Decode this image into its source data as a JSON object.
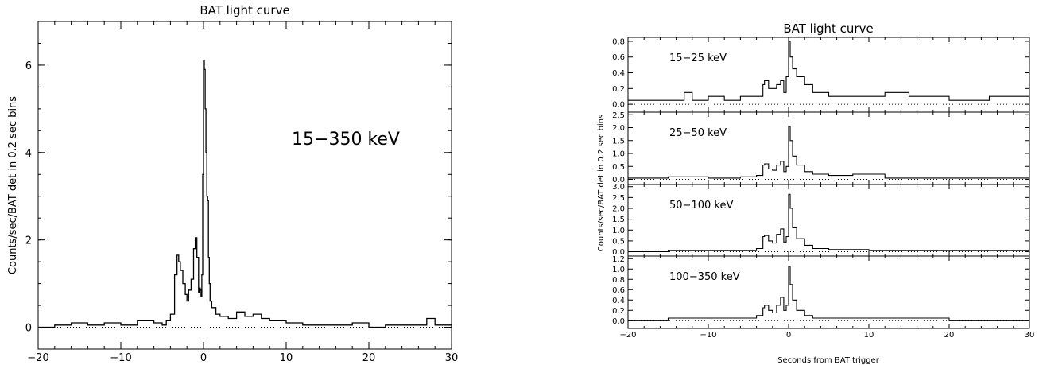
{
  "chart_data": [
    {
      "type": "line",
      "title": "BAT light curve",
      "ylabel": "Counts/sec/BAT det in 0.2 sec bins",
      "xlabel": "",
      "xlim": [
        -20,
        30
      ],
      "ylim": [
        -0.5,
        7.0
      ],
      "xticks": [
        -20,
        -10,
        0,
        10,
        20,
        30
      ],
      "xtick_labels": [
        "−20",
        "−10",
        "0",
        "10",
        "20",
        "30"
      ],
      "yticks": [
        0,
        2,
        4,
        6
      ],
      "ytick_labels": [
        "0",
        "2",
        "4",
        "6"
      ],
      "annotation": "15−350 keV",
      "baseline": 0,
      "grid": false,
      "series": [
        {
          "x": [
            -20,
            -18,
            -16,
            -14,
            -12,
            -10,
            -8,
            -6,
            -5,
            -4.5,
            -4,
            -3.5,
            -3.2,
            -3,
            -2.8,
            -2.5,
            -2.2,
            -2,
            -1.8,
            -1.5,
            -1.2,
            -1,
            -0.8,
            -0.6,
            -0.5,
            -0.4,
            -0.3,
            -0.2,
            -0.1,
            0,
            0.1,
            0.2,
            0.3,
            0.4,
            0.5,
            0.6,
            0.7,
            0.8,
            1,
            1.5,
            2,
            3,
            4,
            5,
            6,
            7,
            8,
            10,
            12,
            15,
            18,
            20,
            22,
            25,
            27,
            28,
            30
          ],
          "y": [
            0.0,
            0.05,
            0.1,
            0.05,
            0.1,
            0.05,
            0.15,
            0.1,
            0.05,
            0.15,
            0.3,
            1.2,
            1.65,
            1.5,
            1.3,
            1.0,
            0.75,
            0.6,
            0.85,
            1.1,
            1.8,
            2.05,
            1.6,
            0.8,
            0.9,
            0.85,
            0.7,
            1.2,
            3.5,
            6.1,
            5.9,
            5.0,
            4.0,
            3.0,
            2.9,
            1.6,
            1.0,
            0.6,
            0.45,
            0.3,
            0.25,
            0.2,
            0.35,
            0.25,
            0.3,
            0.2,
            0.15,
            0.1,
            0.05,
            0.05,
            0.1,
            0.0,
            0.05,
            0.05,
            0.2,
            0.05,
            0.0
          ]
        }
      ]
    },
    {
      "type": "line",
      "title": "BAT light curve",
      "xlabel": "Seconds from BAT trigger",
      "ylabel": "Counts/sec/BAT det in 0.2 sec bins",
      "xlim": [
        -20,
        30
      ],
      "xticks": [
        -20,
        -10,
        0,
        10,
        20,
        30
      ],
      "xtick_labels": [
        "−20",
        "−10",
        "0",
        "10",
        "20",
        "30"
      ],
      "grid": false,
      "panels": [
        {
          "annotation": "15−25 keV",
          "ylim": [
            -0.1,
            0.85
          ],
          "yticks": [
            0.0,
            0.2,
            0.4,
            0.6,
            0.8
          ],
          "ytick_labels": [
            "0.0",
            "0.2",
            "0.4",
            "0.6",
            "0.8"
          ],
          "x": [
            -20,
            -16,
            -13,
            -12,
            -10,
            -8,
            -6,
            -4,
            -3.2,
            -3,
            -2.5,
            -2,
            -1.5,
            -1,
            -0.6,
            -0.3,
            0,
            0.2,
            0.5,
            1,
            2,
            3,
            5,
            8,
            12,
            15,
            20,
            25,
            30
          ],
          "y": [
            0.05,
            0.05,
            0.15,
            0.05,
            0.1,
            0.05,
            0.1,
            0.1,
            0.25,
            0.3,
            0.2,
            0.2,
            0.25,
            0.3,
            0.15,
            0.35,
            0.8,
            0.6,
            0.45,
            0.35,
            0.25,
            0.15,
            0.1,
            0.1,
            0.15,
            0.1,
            0.05,
            0.1,
            0.05
          ]
        },
        {
          "annotation": "25−50 keV",
          "ylim": [
            -0.2,
            2.6
          ],
          "yticks": [
            0.0,
            0.5,
            1.0,
            1.5,
            2.0,
            2.5
          ],
          "ytick_labels": [
            "0.0",
            "0.5",
            "1.0",
            "1.5",
            "2.0",
            "2.5"
          ],
          "x": [
            -20,
            -15,
            -10,
            -6,
            -4,
            -3.2,
            -3,
            -2.5,
            -2,
            -1.5,
            -1,
            -0.6,
            -0.3,
            0,
            0.2,
            0.5,
            1,
            2,
            3,
            5,
            8,
            12,
            20,
            30
          ],
          "y": [
            0.05,
            0.1,
            0.05,
            0.1,
            0.15,
            0.55,
            0.6,
            0.4,
            0.35,
            0.55,
            0.7,
            0.3,
            0.5,
            2.05,
            1.5,
            0.9,
            0.55,
            0.3,
            0.2,
            0.15,
            0.2,
            0.05,
            0.05,
            0.05
          ]
        },
        {
          "annotation": "50−100 keV",
          "ylim": [
            -0.2,
            3.1
          ],
          "yticks": [
            0.0,
            0.5,
            1.0,
            1.5,
            2.0,
            2.5,
            3.0
          ],
          "ytick_labels": [
            "0.0",
            "0.5",
            "1.0",
            "1.5",
            "2.0",
            "2.5",
            "3.0"
          ],
          "x": [
            -20,
            -15,
            -10,
            -6,
            -4,
            -3.2,
            -3,
            -2.5,
            -2,
            -1.5,
            -1,
            -0.6,
            -0.3,
            0,
            0.2,
            0.5,
            1,
            2,
            3,
            5,
            10,
            20,
            30
          ],
          "y": [
            0.0,
            0.05,
            0.05,
            0.05,
            0.15,
            0.7,
            0.75,
            0.5,
            0.4,
            0.8,
            1.05,
            0.45,
            0.7,
            2.65,
            2.0,
            1.1,
            0.6,
            0.3,
            0.15,
            0.1,
            0.05,
            0.05,
            0.05
          ]
        },
        {
          "annotation": "100−350 keV",
          "ylim": [
            -0.15,
            1.25
          ],
          "yticks": [
            0.0,
            0.2,
            0.4,
            0.6,
            0.8,
            1.0,
            1.2
          ],
          "ytick_labels": [
            "0.0",
            "0.2",
            "0.4",
            "0.6",
            "0.8",
            "1.0",
            "1.2"
          ],
          "x": [
            -20,
            -15,
            -10,
            -6,
            -4,
            -3.2,
            -3,
            -2.5,
            -2,
            -1.5,
            -1,
            -0.6,
            -0.3,
            0,
            0.2,
            0.5,
            1,
            2,
            3,
            5,
            10,
            20,
            30
          ],
          "y": [
            0.0,
            0.05,
            0.05,
            0.05,
            0.1,
            0.25,
            0.3,
            0.2,
            0.15,
            0.3,
            0.45,
            0.2,
            0.3,
            1.05,
            0.7,
            0.4,
            0.2,
            0.1,
            0.05,
            0.05,
            0.05,
            0.0,
            0.0
          ]
        }
      ]
    }
  ]
}
